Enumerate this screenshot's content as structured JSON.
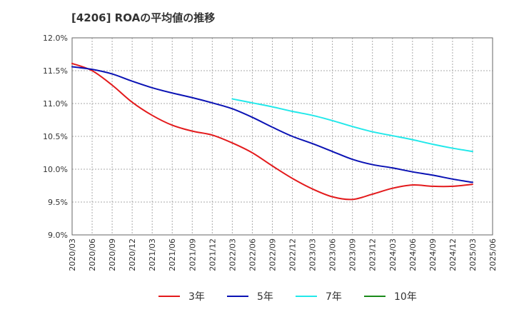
{
  "chart_data": {
    "type": "line",
    "title": "[4206]  ROAの平均値の推移",
    "xlabel": "",
    "ylabel": "",
    "ylim": [
      9.0,
      12.0
    ],
    "y_ticks": [
      {
        "value": 12.0,
        "label": "12.0%"
      },
      {
        "value": 11.5,
        "label": "11.5%"
      },
      {
        "value": 11.0,
        "label": "11.0%"
      },
      {
        "value": 10.5,
        "label": "10.5%"
      },
      {
        "value": 10.0,
        "label": "10.0%"
      },
      {
        "value": 9.5,
        "label": "9.5%"
      },
      {
        "value": 9.0,
        "label": "9.0%"
      }
    ],
    "x": [
      "2020/03",
      "2020/06",
      "2020/09",
      "2020/12",
      "2021/03",
      "2021/06",
      "2021/09",
      "2021/12",
      "2022/03",
      "2022/06",
      "2022/09",
      "2022/12",
      "2023/03",
      "2023/06",
      "2023/09",
      "2023/12",
      "2024/03",
      "2024/06",
      "2024/09",
      "2024/12",
      "2025/03",
      "2025/06"
    ],
    "grid": true,
    "legend_position": "bottom",
    "series": [
      {
        "name": "3年",
        "color": "#e31a1c",
        "values": [
          11.61,
          11.5,
          11.28,
          11.02,
          10.82,
          10.67,
          10.58,
          10.52,
          10.4,
          10.25,
          10.05,
          9.86,
          9.7,
          9.58,
          9.54,
          9.62,
          9.71,
          9.76,
          9.74,
          9.74,
          9.77,
          null
        ]
      },
      {
        "name": "5年",
        "color": "#0a12b4",
        "values": [
          11.56,
          11.52,
          11.45,
          11.34,
          11.24,
          11.16,
          11.09,
          11.01,
          10.92,
          10.79,
          10.64,
          10.5,
          10.39,
          10.27,
          10.15,
          10.07,
          10.02,
          9.96,
          9.91,
          9.85,
          9.8,
          null
        ]
      },
      {
        "name": "7年",
        "color": "#22e8ea",
        "values": [
          null,
          null,
          null,
          null,
          null,
          null,
          null,
          null,
          11.07,
          11.01,
          10.95,
          10.88,
          10.82,
          10.74,
          10.65,
          10.57,
          10.51,
          10.45,
          10.38,
          10.32,
          10.27,
          null
        ]
      },
      {
        "name": "10年",
        "color": "#1a8a1a",
        "values": [
          null,
          null,
          null,
          null,
          null,
          null,
          null,
          null,
          null,
          null,
          null,
          null,
          null,
          null,
          null,
          null,
          null,
          null,
          null,
          null,
          null,
          null
        ]
      }
    ]
  }
}
